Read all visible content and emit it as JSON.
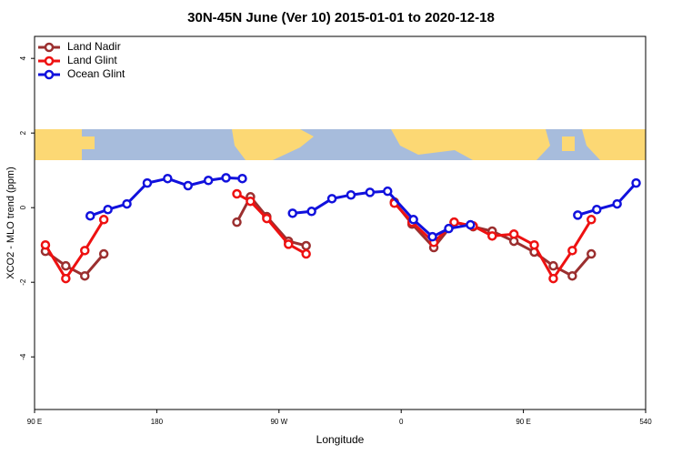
{
  "chart_data": {
    "type": "line",
    "title": "30N-45N June (Ver 10)   2015-01-01 to 2020-12-18",
    "x_label": "Longitude",
    "y_label": "XCO2 - MLO trend (ppm)",
    "xlim": [
      90,
      540
    ],
    "ylim": [
      -5.41,
      4.59
    ],
    "xticks": [
      {
        "value": 90,
        "label": "90 E"
      },
      180,
      {
        "value": 270,
        "label": "90 W"
      },
      {
        "value": 360,
        "label": "0"
      },
      {
        "value": 450,
        "label": "90 E"
      },
      540
    ],
    "yticks": [
      -4,
      -2,
      0,
      2,
      4
    ],
    "legend": "top-left",
    "series": [
      {
        "name": "Land Nadir",
        "color": "#9b2f2f",
        "x": [
          98,
          113,
          127,
          141,
          null,
          239,
          249,
          261,
          277,
          290,
          null,
          355,
          368,
          384,
          399,
          413,
          427,
          443,
          458,
          472,
          486,
          500
        ],
        "values": [
          -1.17,
          -1.56,
          -1.83,
          -1.24,
          null,
          -0.39,
          0.29,
          -0.24,
          -0.9,
          -1.02,
          null,
          0.15,
          -0.44,
          -1.07,
          -0.39,
          -0.51,
          -0.63,
          -0.9,
          -1.19,
          -1.56,
          -1.83,
          -1.24
        ]
      },
      {
        "name": "Land Glint",
        "color": "#ee1111",
        "x": [
          98,
          113,
          127,
          141,
          null,
          239,
          249,
          261,
          277,
          290,
          null,
          355,
          368,
          384,
          399,
          413,
          427,
          443,
          458,
          472,
          486,
          500
        ],
        "values": [
          -1.0,
          -1.9,
          -1.15,
          -0.32,
          null,
          0.37,
          0.17,
          -0.29,
          -0.98,
          -1.24,
          null,
          0.12,
          -0.39,
          -0.93,
          -0.39,
          -0.49,
          -0.76,
          -0.71,
          -1.0,
          -1.9,
          -1.15,
          -0.32
        ]
      },
      {
        "name": "Ocean Glint",
        "color": "#1111dd",
        "x": [
          131,
          144,
          158,
          173,
          188,
          203,
          218,
          231,
          243,
          null,
          280,
          294,
          309,
          323,
          337,
          350,
          369,
          383,
          395,
          411,
          null,
          490,
          504,
          519,
          533
        ],
        "values": [
          -0.22,
          -0.05,
          0.1,
          0.66,
          0.78,
          0.59,
          0.73,
          0.8,
          0.78,
          null,
          -0.15,
          -0.1,
          0.24,
          0.34,
          0.41,
          0.44,
          -0.32,
          -0.78,
          -0.56,
          -0.46,
          null,
          -0.2,
          -0.05,
          0.1,
          0.66
        ]
      }
    ]
  }
}
